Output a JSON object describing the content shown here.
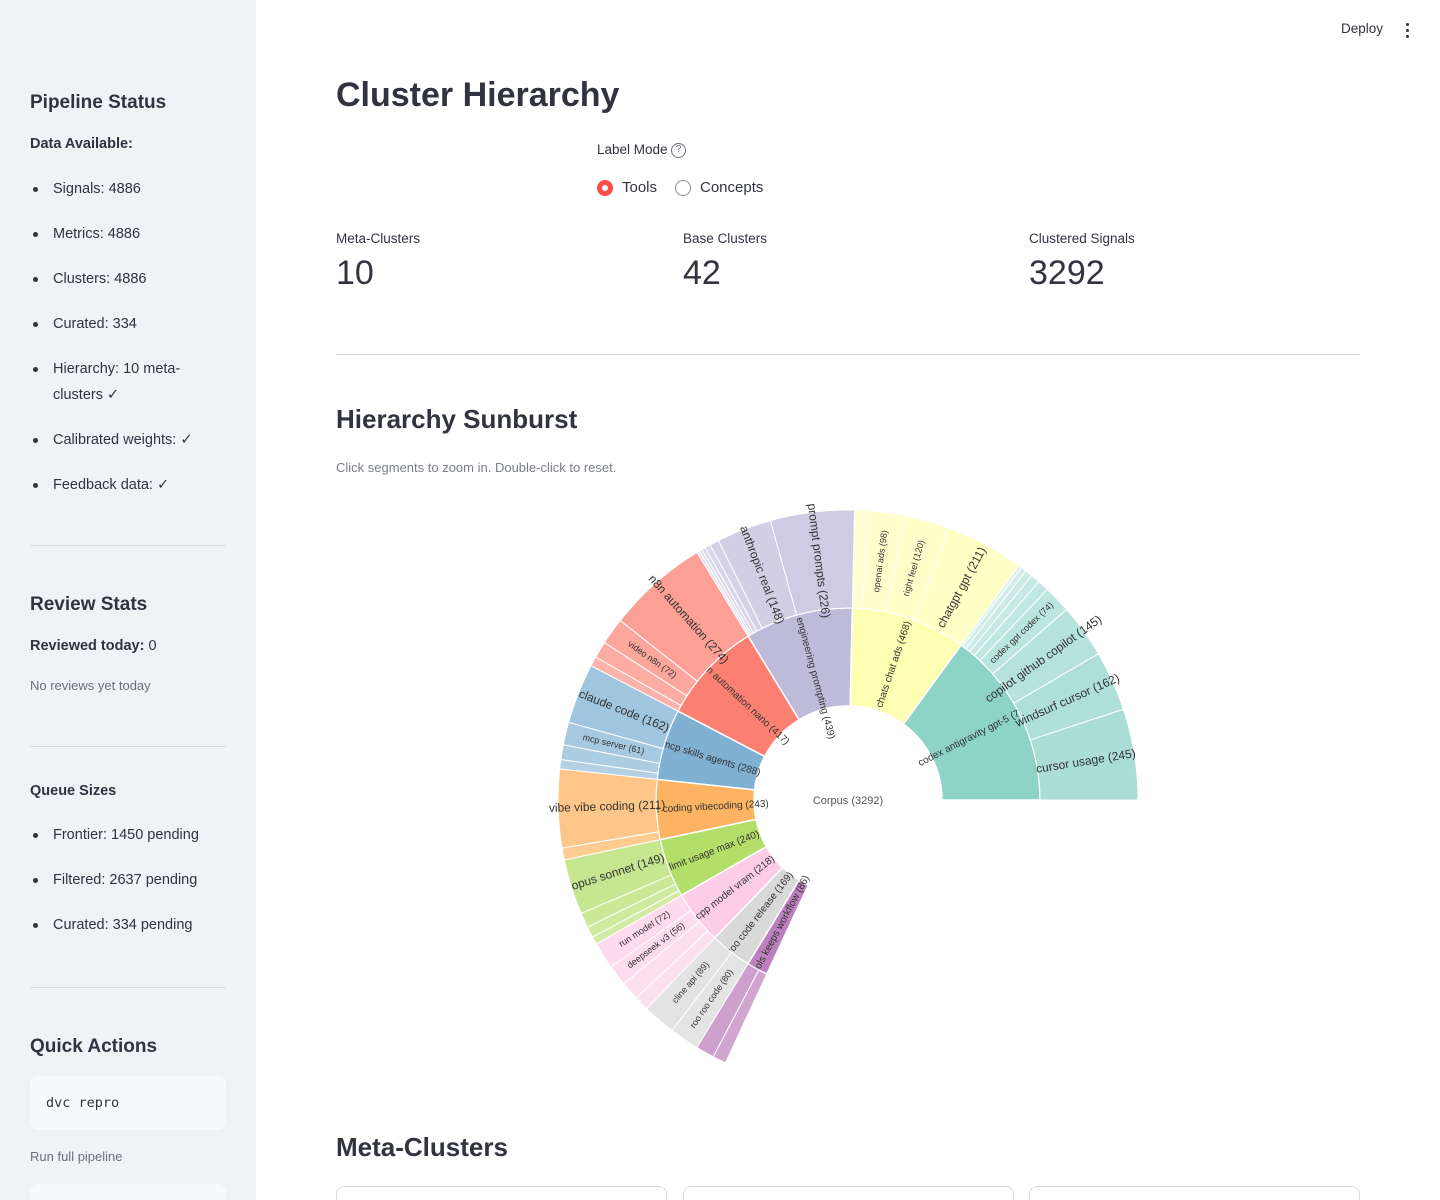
{
  "sidebar": {
    "pipeline": {
      "title": "Pipeline Status",
      "data_label": "Data Available:",
      "items": [
        "Signals: 4886",
        "Metrics: 4886",
        "Clusters: 4886",
        "Curated: 334",
        "Hierarchy: 10 meta-clusters ✓",
        "Calibrated weights: ✓",
        "Feedback data: ✓"
      ]
    },
    "review": {
      "title": "Review Stats",
      "reviewed_label": "Reviewed today:",
      "reviewed_value": "0",
      "note": "No reviews yet today"
    },
    "queues": {
      "title": "Queue Sizes",
      "items": [
        "Frontier: 1450 pending",
        "Filtered: 2637 pending",
        "Curated: 334 pending"
      ]
    },
    "quick": {
      "title": "Quick Actions",
      "command": "dvc repro",
      "command_caption": "Run full pipeline"
    }
  },
  "header": {
    "deploy_label": "Deploy",
    "menu_icon": "kebab-menu-icon"
  },
  "main": {
    "title": "Cluster Hierarchy",
    "label_mode": {
      "label": "Label Mode",
      "help_icon": "question-circle-icon",
      "options": [
        "Tools",
        "Concepts"
      ],
      "selected": "Tools"
    },
    "metrics": [
      {
        "label": "Meta-Clusters",
        "value": "10"
      },
      {
        "label": "Base Clusters",
        "value": "42"
      },
      {
        "label": "Clustered Signals",
        "value": "3292"
      }
    ],
    "sunburst_title": "Hierarchy Sunburst",
    "sunburst_caption": "Click segments to zoom in. Double-click to reset.",
    "meta_title": "Meta-Clusters"
  },
  "colors": {
    "accent": "#ff4b4b",
    "sidebar_bg": "#f0f2f6",
    "text": "#31333f"
  },
  "chart_data": {
    "type": "sunburst",
    "root": {
      "label": "Corpus (3292)",
      "value": 3292
    },
    "meta": [
      {
        "label": "codex antigravity gpt-5 (724)",
        "value": 724,
        "color": "#8dd3c7",
        "children": [
          {
            "label": "cursor usage (245)",
            "value": 245
          },
          {
            "label": "windsurf cursor (162)",
            "value": 162
          },
          {
            "label": "copilot github copilot (145)",
            "value": 145
          },
          {
            "label": "codex gpt codex (74)",
            "value": 74
          },
          {
            "label": "",
            "value": 30
          },
          {
            "label": "",
            "value": 25
          },
          {
            "label": "",
            "value": 20
          },
          {
            "label": "",
            "value": 15
          },
          {
            "label": "",
            "value": 8
          }
        ]
      },
      {
        "label": "chats chat ads (468)",
        "value": 468,
        "color": "#ffffb3",
        "children": [
          {
            "label": "chatgpt gpt (211)",
            "value": 211
          },
          {
            "label": "right feel (120)",
            "value": 120
          },
          {
            "label": "openai ads (98)",
            "value": 98
          },
          {
            "label": "",
            "value": 39
          }
        ]
      },
      {
        "label": "prompt engineering prompting (439)",
        "value": 439,
        "color": "#bebada",
        "children": [
          {
            "label": "prompt prompts (226)",
            "value": 226
          },
          {
            "label": "anthropic real (148)",
            "value": 148
          },
          {
            "label": "",
            "value": 25
          },
          {
            "label": "",
            "value": 15
          },
          {
            "label": "",
            "value": 10
          },
          {
            "label": "",
            "value": 8
          },
          {
            "label": "",
            "value": 7
          }
        ]
      },
      {
        "label": "n8n automation nano (417)",
        "value": 417,
        "color": "#fb8072",
        "children": [
          {
            "label": "n8n automation (274)",
            "value": 274
          },
          {
            "label": "video n8n (72)",
            "value": 72
          },
          {
            "label": "",
            "value": 45
          },
          {
            "label": "",
            "value": 26
          }
        ]
      },
      {
        "label": "mcp skills agents (288)",
        "value": 288,
        "color": "#80b1d3",
        "children": [
          {
            "label": "claude code (162)",
            "value": 162
          },
          {
            "label": "mcp server (61)",
            "value": 61
          },
          {
            "label": "",
            "value": 40
          },
          {
            "label": "",
            "value": 25
          }
        ]
      },
      {
        "label": "vibe coding vibecoding (243)",
        "value": 243,
        "color": "#fdb462",
        "children": [
          {
            "label": "vibe vibe coding (211)",
            "value": 211
          },
          {
            "label": "",
            "value": 32
          }
        ]
      },
      {
        "label": "limit usage max (240)",
        "value": 240,
        "color": "#b3de69",
        "children": [
          {
            "label": "opus sonnet (149)",
            "value": 149
          },
          {
            "label": "",
            "value": 40
          },
          {
            "label": "",
            "value": 30
          },
          {
            "label": "",
            "value": 21
          }
        ]
      },
      {
        "label": "cpp model vram (218)",
        "value": 218,
        "color": "#fccde5",
        "children": [
          {
            "label": "run model (72)",
            "value": 72
          },
          {
            "label": "deepseek v3 (56)",
            "value": 56
          },
          {
            "label": "",
            "value": 50
          },
          {
            "label": "",
            "value": 40
          }
        ]
      },
      {
        "label": "roo code release (169)",
        "value": 169,
        "color": "#d9d9d9",
        "children": [
          {
            "label": "cline api (89)",
            "value": 89
          },
          {
            "label": "roo roo code (80)",
            "value": 80
          }
        ]
      },
      {
        "label": "tools keeps workflow (86)",
        "value": 86,
        "color": "#bc80bd",
        "children": [
          {
            "label": "",
            "value": 50
          },
          {
            "label": "",
            "value": 36
          }
        ]
      }
    ]
  }
}
